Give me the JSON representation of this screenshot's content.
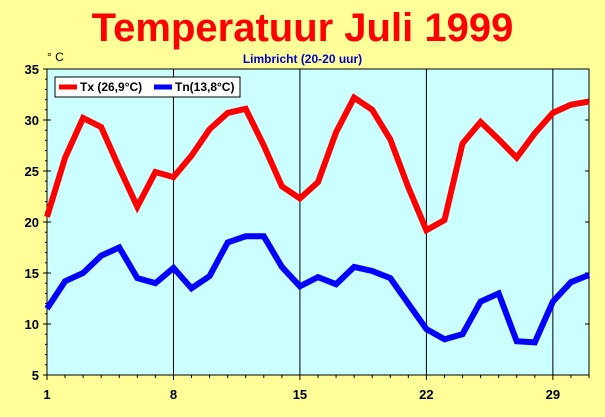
{
  "chart_data": {
    "type": "line",
    "title": "Temperatuur Juli 1999",
    "subtitle": "Limbricht (20-20 uur)",
    "ylabel": "° C",
    "xlabel": "",
    "xlim": [
      1,
      31
    ],
    "ylim": [
      5,
      35
    ],
    "x_ticks": [
      1,
      8,
      15,
      22,
      29
    ],
    "y_ticks": [
      5,
      10,
      15,
      20,
      25,
      30,
      35
    ],
    "grid": "vertical lines at x ticks",
    "legend_position": "top-left",
    "x": [
      1,
      2,
      3,
      4,
      5,
      6,
      7,
      8,
      9,
      10,
      11,
      12,
      13,
      14,
      15,
      16,
      17,
      18,
      19,
      20,
      21,
      22,
      23,
      24,
      25,
      26,
      27,
      28,
      29,
      30,
      31
    ],
    "series": [
      {
        "name": "Tx (26,9°C)",
        "color": "#ff0000",
        "values": [
          20.5,
          26.3,
          30.2,
          29.3,
          25.3,
          21.5,
          24.9,
          24.4,
          26.5,
          29.1,
          30.7,
          31.1,
          27.5,
          23.5,
          22.3,
          23.9,
          28.8,
          32.2,
          31.0,
          28.1,
          23.4,
          19.2,
          20.2,
          27.7,
          29.8,
          28.1,
          26.3,
          28.7,
          30.7,
          31.5,
          31.8
        ]
      },
      {
        "name": "Tn(13,8°C)",
        "color": "#0000ff",
        "values": [
          11.5,
          14.2,
          15.0,
          16.7,
          17.5,
          14.5,
          14.0,
          15.5,
          13.5,
          14.7,
          18.0,
          18.6,
          18.6,
          15.6,
          13.7,
          14.6,
          13.9,
          15.6,
          15.2,
          14.5,
          12.0,
          9.5,
          8.5,
          9.0,
          12.2,
          13.0,
          8.3,
          8.2,
          12.2,
          14.1,
          14.8
        ]
      }
    ]
  },
  "colors": {
    "background": "#ffff99",
    "plot_area": "#ccffff",
    "title": "#ff0000",
    "subtitle": "#0000cc"
  }
}
